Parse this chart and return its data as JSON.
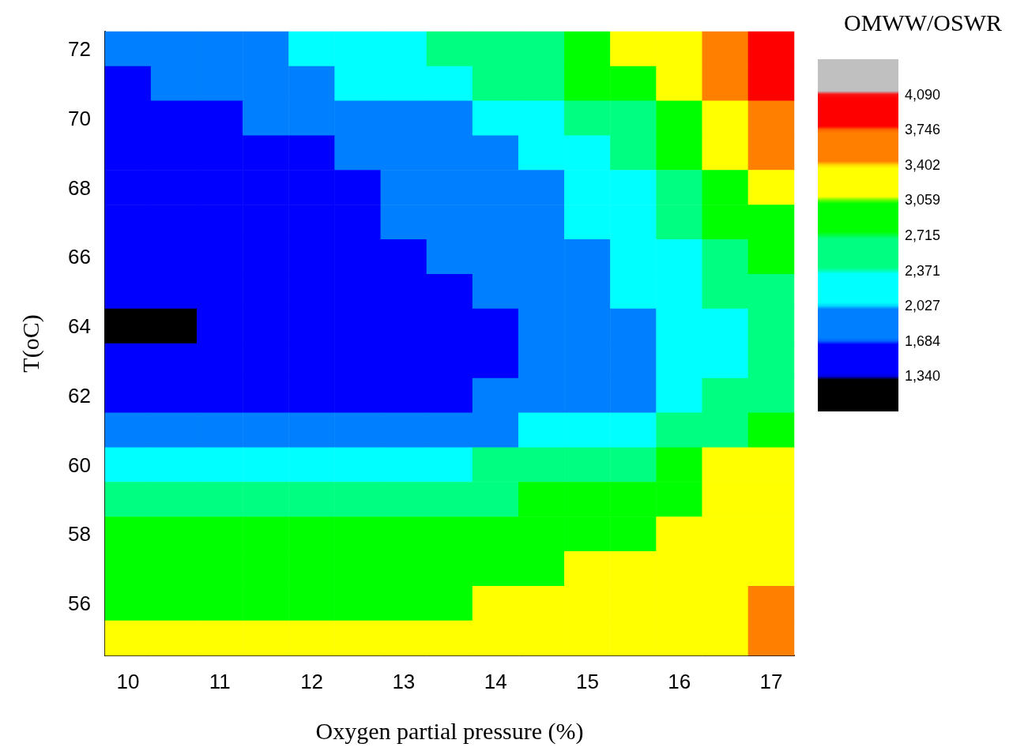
{
  "chart_data": {
    "type": "heatmap",
    "xlabel": "Oxygen partial pressure (%)",
    "ylabel": "T(oC)",
    "clabel": "OMWW/OSWR",
    "categories": [
      "10",
      null,
      "11",
      null,
      "12",
      null,
      "13",
      null,
      "14",
      null,
      "15",
      null,
      "16",
      null,
      "17"
    ],
    "y_categories": [
      "72",
      null,
      "70",
      null,
      "68",
      null,
      "66",
      null,
      "64",
      null,
      "62",
      null,
      "60",
      null,
      "58",
      null,
      "56",
      null
    ],
    "clim": [
      996,
      4434
    ],
    "cticks": [
      {
        "value": 1340,
        "label": "1,340"
      },
      {
        "value": 1684,
        "label": "1,684"
      },
      {
        "value": 2027,
        "label": "2,027"
      },
      {
        "value": 2371,
        "label": "2,371"
      },
      {
        "value": 2715,
        "label": "2,715"
      },
      {
        "value": 3059,
        "label": "3,059"
      },
      {
        "value": 3402,
        "label": "3,402"
      },
      {
        "value": 3746,
        "label": "3,746"
      },
      {
        "value": 4090,
        "label": "4,090"
      }
    ],
    "colors": [
      "#000000",
      "#0000ff",
      "#0080ff",
      "#00ffff",
      "#00ff80",
      "#00ff00",
      "#ffff00",
      "#ff8000",
      "#ff0000",
      "#c0c0c0"
    ],
    "cells": [
      [
        1856,
        1856,
        1856,
        1856,
        2199,
        2199,
        2199,
        2543,
        2543,
        2543,
        2887,
        3230,
        3230,
        3574,
        3918
      ],
      [
        1512,
        1856,
        1856,
        1856,
        1856,
        2199,
        2199,
        2199,
        2543,
        2543,
        2887,
        2887,
        3230,
        3574,
        3918
      ],
      [
        1512,
        1512,
        1512,
        1856,
        1856,
        1856,
        1856,
        1856,
        2199,
        2199,
        2543,
        2543,
        2887,
        3230,
        3574
      ],
      [
        1512,
        1512,
        1512,
        1512,
        1512,
        1856,
        1856,
        1856,
        1856,
        2199,
        2199,
        2543,
        2887,
        3230,
        3574
      ],
      [
        1512,
        1512,
        1512,
        1512,
        1512,
        1512,
        1856,
        1856,
        1856,
        1856,
        2199,
        2199,
        2543,
        2887,
        3230
      ],
      [
        1512,
        1512,
        1512,
        1512,
        1512,
        1512,
        1856,
        1856,
        1856,
        1856,
        2199,
        2199,
        2543,
        2887,
        2887
      ],
      [
        1512,
        1512,
        1512,
        1512,
        1512,
        1512,
        1512,
        1856,
        1856,
        1856,
        1856,
        2199,
        2199,
        2543,
        2887
      ],
      [
        1512,
        1512,
        1512,
        1512,
        1512,
        1512,
        1512,
        1512,
        1856,
        1856,
        1856,
        2199,
        2199,
        2543,
        2543
      ],
      [
        1170,
        1170,
        1512,
        1512,
        1512,
        1512,
        1512,
        1512,
        1512,
        1856,
        1856,
        1856,
        2199,
        2199,
        2543
      ],
      [
        1512,
        1512,
        1512,
        1512,
        1512,
        1512,
        1512,
        1512,
        1512,
        1856,
        1856,
        1856,
        2199,
        2199,
        2543
      ],
      [
        1512,
        1512,
        1512,
        1512,
        1512,
        1512,
        1512,
        1512,
        1856,
        1856,
        1856,
        1856,
        2199,
        2543,
        2543
      ],
      [
        1856,
        1856,
        1856,
        1856,
        1856,
        1856,
        1856,
        1856,
        1856,
        2199,
        2199,
        2199,
        2543,
        2543,
        2887
      ],
      [
        2199,
        2199,
        2199,
        2199,
        2199,
        2199,
        2199,
        2199,
        2543,
        2543,
        2543,
        2543,
        2887,
        3230,
        3230
      ],
      [
        2543,
        2543,
        2543,
        2543,
        2543,
        2543,
        2543,
        2543,
        2543,
        2887,
        2887,
        2887,
        2887,
        3230,
        3230
      ],
      [
        2887,
        2887,
        2887,
        2887,
        2887,
        2887,
        2887,
        2887,
        2887,
        2887,
        2887,
        2887,
        3230,
        3230,
        3230
      ],
      [
        2887,
        2887,
        2887,
        2887,
        2887,
        2887,
        2887,
        2887,
        2887,
        2887,
        3230,
        3230,
        3230,
        3230,
        3230
      ],
      [
        2887,
        2887,
        2887,
        2887,
        2887,
        2887,
        2887,
        2887,
        3230,
        3230,
        3230,
        3230,
        3230,
        3230,
        3574
      ],
      [
        3230,
        3230,
        3230,
        3230,
        3230,
        3230,
        3230,
        3230,
        3230,
        3230,
        3230,
        3230,
        3230,
        3230,
        3574
      ]
    ]
  }
}
